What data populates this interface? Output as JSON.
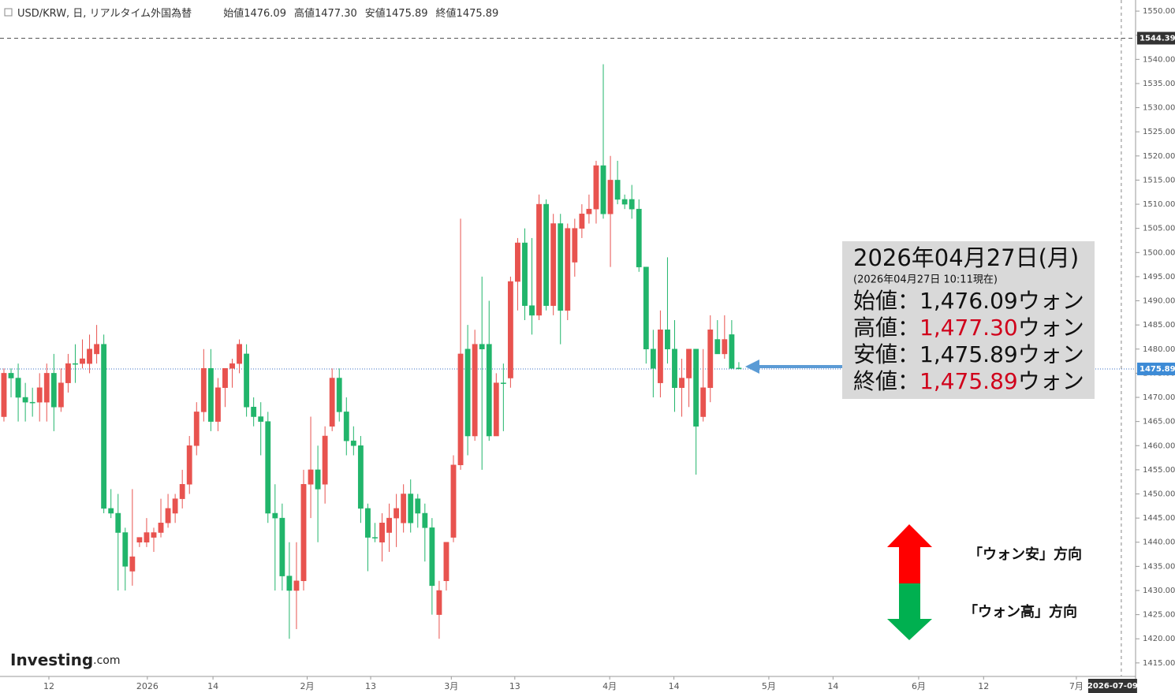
{
  "header": {
    "symbol": "USD/KRW, 日, リアルタイム外国為替",
    "ohlc": [
      {
        "label": "始値",
        "value": "1476.09"
      },
      {
        "label": "高値",
        "value": "1477.30"
      },
      {
        "label": "安値",
        "value": "1475.89"
      },
      {
        "label": "終値",
        "value": "1475.89"
      }
    ]
  },
  "info_box": {
    "date": "2026年04月27日(月)",
    "asof": "(2026年04月27日 10:11現在)",
    "rows": [
      {
        "label": "始値：",
        "value": "1,476.09",
        "unit": "ウォン",
        "value_color": "#111111"
      },
      {
        "label": "高値：",
        "value": "1,477.30",
        "unit": "ウォン",
        "value_color": "#d0021b"
      },
      {
        "label": "安値：",
        "value": "1,475.89",
        "unit": "ウォン",
        "value_color": "#111111"
      },
      {
        "label": "終値：",
        "value": "1,475.89",
        "unit": "ウォン",
        "value_color": "#d0021b"
      }
    ]
  },
  "annotations": {
    "up": "「ウォン安」方向",
    "down": "「ウォン高」方向"
  },
  "logo": {
    "main": "Investing",
    "suffix": ".com"
  },
  "chart_data": {
    "type": "candlestick",
    "up_color": "#e8534f",
    "down_color": "#21b56b",
    "categories": [
      null,
      null,
      null,
      null,
      null,
      null,
      null,
      null,
      null,
      null,
      null,
      null,
      null,
      null,
      null,
      null,
      null,
      null,
      null,
      null,
      null,
      null,
      null,
      null,
      null,
      null,
      null,
      null,
      null,
      null,
      null,
      null,
      null,
      null,
      null,
      null,
      null,
      null,
      null,
      null,
      null,
      null,
      null,
      null,
      null,
      null,
      null,
      null,
      null,
      null,
      null,
      null,
      null,
      null,
      null,
      null,
      null,
      null,
      null,
      null,
      null,
      null,
      null,
      null,
      null,
      null,
      null,
      null,
      null,
      null,
      null,
      null,
      null,
      null,
      null,
      null,
      null,
      null,
      null,
      null,
      null,
      null,
      null,
      null,
      null,
      null,
      null,
      null,
      null,
      null,
      null,
      null,
      null,
      null,
      null,
      null,
      null,
      null,
      null,
      null,
      null,
      null,
      null,
      null
    ],
    "open": [
      1466,
      1475,
      1474,
      1470,
      1469,
      1469,
      1469,
      1475,
      1468,
      1473,
      1477,
      1477,
      1477,
      1479,
      1481,
      1447,
      1446,
      1442,
      1434,
      1440,
      1440,
      1441,
      1442,
      1444,
      1446,
      1449,
      1452,
      1460,
      1467,
      1476,
      1465,
      1472,
      1476,
      1477,
      1479,
      1468,
      1466,
      1465,
      1446,
      1445,
      1433,
      1430,
      1432,
      1452,
      1455,
      1452,
      1464,
      1474,
      1467,
      1461,
      1460,
      1447,
      1441,
      1440,
      1442,
      1445,
      1444,
      1450,
      1449,
      1446,
      1443,
      1425,
      1432,
      1441,
      1456,
      1480,
      1462,
      1481,
      1481,
      1462,
      1473,
      1474,
      1494,
      1502,
      1489,
      1487,
      1510,
      1489,
      1506,
      1488,
      1498,
      1505,
      1508,
      1509,
      1518,
      1508,
      1515,
      1511,
      1511,
      1509,
      1497,
      1480,
      1473,
      1484,
      1480,
      1472,
      1474,
      1480,
      1466,
      1472,
      1482,
      1479,
      1483,
      1476.09
    ],
    "high": [
      1476,
      1476,
      1477,
      1473,
      1472,
      1475,
      1477,
      1479,
      1476,
      1479,
      1481,
      1482,
      1483,
      1485,
      1483,
      1451,
      1450,
      1443,
      1451,
      1441,
      1445,
      1443,
      1449,
      1450,
      1450,
      1455,
      1462,
      1469,
      1480,
      1480,
      1474,
      1476,
      1478,
      1482,
      1481,
      1470,
      1469,
      1467,
      1452,
      1448,
      1440,
      1440,
      1455,
      1466,
      1460,
      1464,
      1476,
      1476,
      1470,
      1464,
      1462,
      1448,
      1444,
      1446,
      1448,
      1450,
      1452,
      1453,
      1450,
      1448,
      1445,
      1432,
      1440,
      1458,
      1507,
      1485,
      1484,
      1495,
      1490,
      1475,
      1477,
      1495,
      1503,
      1505,
      1503,
      1512,
      1511,
      1508,
      1508,
      1506,
      1507,
      1510,
      1512,
      1519,
      1539,
      1520,
      1519,
      1512,
      1514,
      1511,
      1497,
      1484,
      1488,
      1499,
      1486,
      1478,
      1480,
      1480,
      1480,
      1487,
      1486,
      1487,
      1486,
      1477.3
    ],
    "low": [
      1465,
      1470,
      1465,
      1465,
      1466,
      1465,
      1465,
      1463,
      1467,
      1471,
      1473,
      1476,
      1475,
      1477,
      1446,
      1445,
      1430,
      1430,
      1431,
      1439,
      1439,
      1438,
      1441,
      1443,
      1444,
      1447,
      1450,
      1458,
      1465,
      1463,
      1463,
      1468,
      1472,
      1475,
      1466,
      1464,
      1458,
      1444,
      1430,
      1430,
      1420,
      1422,
      1430,
      1445,
      1440,
      1448,
      1463,
      1465,
      1458,
      1458,
      1444,
      1434,
      1440,
      1436,
      1438,
      1439,
      1442,
      1442,
      1443,
      1436,
      1425,
      1420,
      1430,
      1440,
      1455,
      1458,
      1461,
      1455,
      1461,
      1462,
      1463,
      1472,
      1488,
      1486,
      1483,
      1486,
      1488,
      1487,
      1481,
      1486,
      1495,
      1503,
      1506,
      1506,
      1507,
      1497,
      1510,
      1509,
      1507,
      1496,
      1477,
      1470,
      1470,
      1477,
      1467,
      1466,
      1468,
      1454,
      1465,
      1469,
      1479,
      1478,
      1476,
      1475.89
    ],
    "close": [
      1475,
      1474,
      1470,
      1469,
      1469,
      1472,
      1475,
      1468,
      1473,
      1477,
      1477,
      1478,
      1480,
      1481,
      1447,
      1446,
      1442,
      1435,
      1437,
      1441,
      1442,
      1442,
      1444,
      1447,
      1449,
      1452,
      1460,
      1467,
      1476,
      1465,
      1472,
      1476,
      1477,
      1481,
      1468,
      1466,
      1465,
      1446,
      1445,
      1433,
      1430,
      1432,
      1452,
      1455,
      1451,
      1462,
      1474,
      1467,
      1461,
      1460,
      1447,
      1441,
      1441,
      1444,
      1445,
      1447,
      1450,
      1444,
      1446,
      1443,
      1431,
      1430,
      1440,
      1456,
      1479,
      1462,
      1481,
      1480,
      1462,
      1473,
      1473,
      1494,
      1502,
      1489,
      1487,
      1510,
      1489,
      1506,
      1488,
      1505,
      1505,
      1508,
      1509,
      1518,
      1508,
      1515,
      1511,
      1510,
      1509,
      1497,
      1480,
      1476,
      1484,
      1480,
      1472,
      1474,
      1480,
      1464,
      1472,
      1484,
      1479,
      1482,
      1476,
      1475.89
    ],
    "xlim": [
      -0.55,
      158.6
    ],
    "xticks": [
      {
        "value": 6.3,
        "label": "12"
      },
      {
        "value": 20.1,
        "label": "2026"
      },
      {
        "value": 29.3,
        "label": "14"
      },
      {
        "value": 42.5,
        "label": "2月"
      },
      {
        "value": 51.4,
        "label": "13"
      },
      {
        "value": 62.7,
        "label": "3月"
      },
      {
        "value": 71.6,
        "label": "13"
      },
      {
        "value": 84.9,
        "label": "4月"
      },
      {
        "value": 93.9,
        "label": "14"
      },
      {
        "value": 107.2,
        "label": "5月"
      },
      {
        "value": 116.2,
        "label": "14"
      },
      {
        "value": 128.2,
        "label": "6月"
      },
      {
        "value": 137.3,
        "label": "12"
      },
      {
        "value": 150.3,
        "label": "7月"
      }
    ],
    "crosshair": {
      "value": 156.6,
      "label": "2026-07-09"
    },
    "ylim": [
      1412.2,
      1552.3
    ],
    "yticks": [
      {
        "value": 1415,
        "label": "1415.00"
      },
      {
        "value": 1420,
        "label": "1420.00"
      },
      {
        "value": 1425,
        "label": "1425.00"
      },
      {
        "value": 1430,
        "label": "1430.00"
      },
      {
        "value": 1435,
        "label": "1435.00"
      },
      {
        "value": 1440,
        "label": "1440.00"
      },
      {
        "value": 1445,
        "label": "1445.00"
      },
      {
        "value": 1450,
        "label": "1450.00"
      },
      {
        "value": 1455,
        "label": "1455.00"
      },
      {
        "value": 1460,
        "label": "1460.00"
      },
      {
        "value": 1465,
        "label": "1465.00"
      },
      {
        "value": 1470,
        "label": "1470.00"
      },
      {
        "value": 1475,
        "label": "1475.00"
      },
      {
        "value": 1480,
        "label": "1480.00"
      },
      {
        "value": 1485,
        "label": "1485.00"
      },
      {
        "value": 1490,
        "label": "1490.00"
      },
      {
        "value": 1495,
        "label": "1495.00"
      },
      {
        "value": 1500,
        "label": "1500.00"
      },
      {
        "value": 1505,
        "label": "1505.00"
      },
      {
        "value": 1510,
        "label": "1510.00"
      },
      {
        "value": 1515,
        "label": "1515.00"
      },
      {
        "value": 1520,
        "label": "1520.00"
      },
      {
        "value": 1525,
        "label": "1525.00"
      },
      {
        "value": 1530,
        "label": "1530.00"
      },
      {
        "value": 1535,
        "label": "1535.00"
      },
      {
        "value": 1540,
        "label": "1540.00"
      },
      {
        "value": 1545,
        "label": "1545.00"
      },
      {
        "value": 1550,
        "label": "1550.00"
      }
    ],
    "high_line": {
      "value": 1544.39,
      "label": "1544.39"
    },
    "last_price": {
      "value": 1475.89,
      "label": "1475.89"
    }
  }
}
